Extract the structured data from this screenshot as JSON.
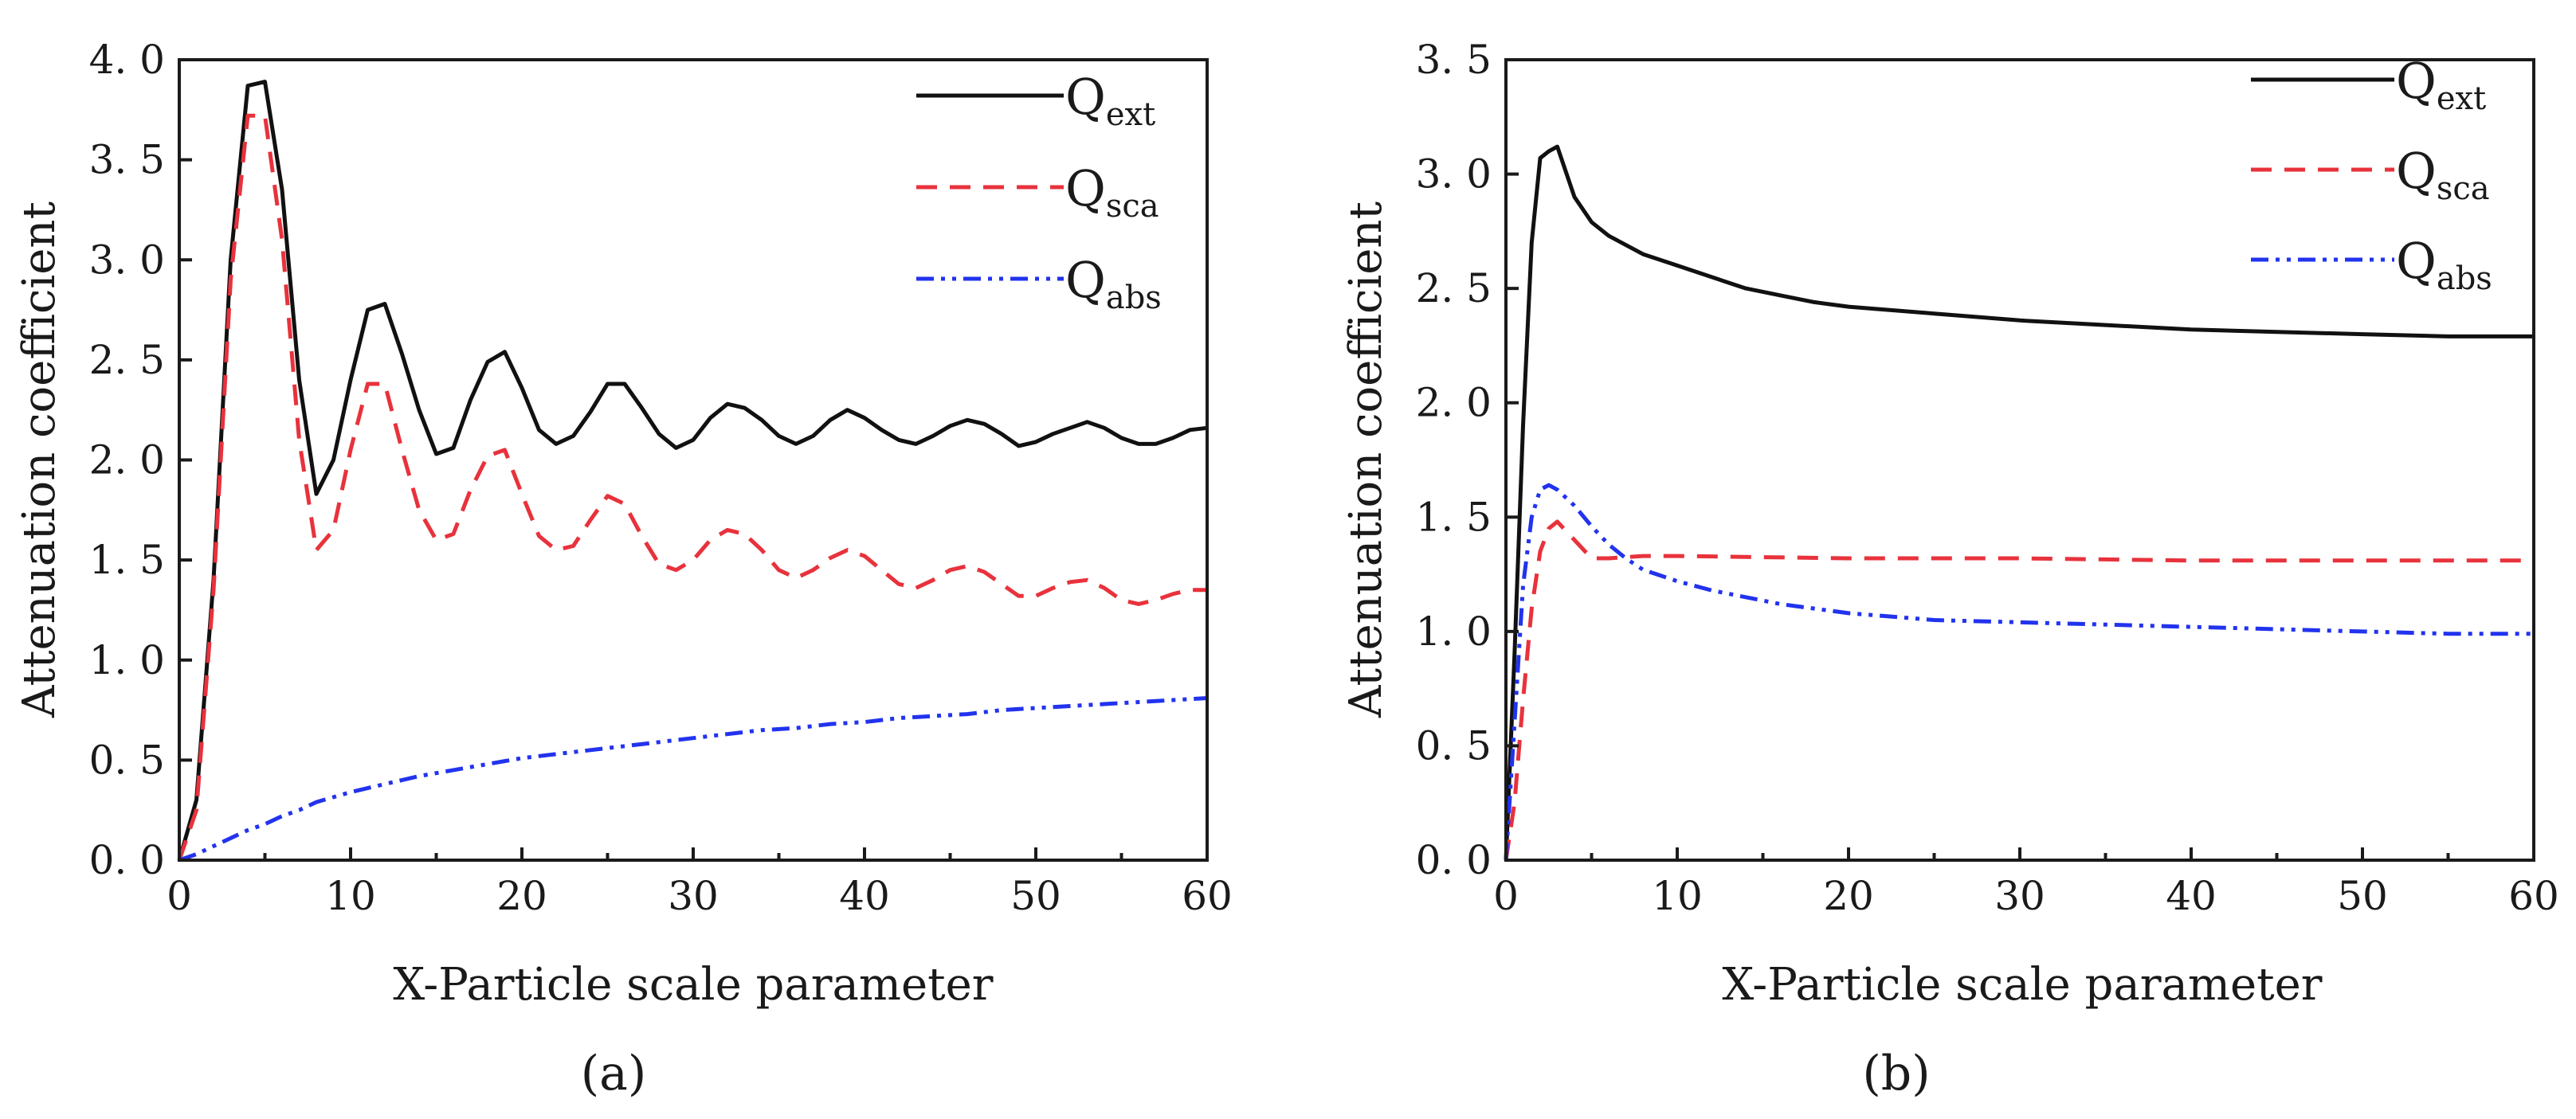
{
  "figure": {
    "captions": [
      "(a)",
      "(b)"
    ]
  },
  "chart_data": [
    {
      "type": "line",
      "panel": "(a)",
      "title": "",
      "xlabel": "X-Particle scale parameter",
      "ylabel": "Attenuation coefficient",
      "xlim": [
        0,
        60
      ],
      "ylim": [
        0,
        4.0
      ],
      "xticks": [
        0,
        10,
        20,
        30,
        40,
        50,
        60
      ],
      "xtick_labels": [
        "0",
        "10",
        "20",
        "30",
        "40",
        "50",
        "60"
      ],
      "yticks": [
        0,
        0.5,
        1.0,
        1.5,
        2.0,
        2.5,
        3.0,
        3.5,
        4.0
      ],
      "ytick_labels": [
        "0. 0",
        "0. 5",
        "1. 0",
        "1. 5",
        "2. 0",
        "2. 5",
        "3. 0",
        "3. 5",
        "4. 0"
      ],
      "legend_position": "top-right",
      "series": [
        {
          "name": "Q_ext",
          "label_main": "Q",
          "label_sub": "ext",
          "color": "#111111",
          "style": "solid",
          "x": [
            0,
            1,
            2,
            3,
            4,
            5,
            6,
            7,
            8,
            9,
            10,
            11,
            12,
            13,
            14,
            15,
            16,
            17,
            18,
            19,
            20,
            21,
            22,
            23,
            24,
            25,
            26,
            27,
            28,
            29,
            30,
            31,
            32,
            33,
            34,
            35,
            36,
            37,
            38,
            39,
            40,
            41,
            42,
            43,
            44,
            45,
            46,
            47,
            48,
            49,
            50,
            51,
            52,
            53,
            54,
            55,
            56,
            57,
            58,
            59,
            60
          ],
          "y": [
            0.0,
            0.3,
            1.4,
            3.0,
            3.87,
            3.89,
            3.35,
            2.4,
            1.83,
            2.0,
            2.4,
            2.75,
            2.78,
            2.53,
            2.25,
            2.03,
            2.06,
            2.3,
            2.49,
            2.54,
            2.36,
            2.15,
            2.08,
            2.12,
            2.24,
            2.38,
            2.38,
            2.26,
            2.13,
            2.06,
            2.1,
            2.21,
            2.28,
            2.26,
            2.2,
            2.12,
            2.08,
            2.12,
            2.2,
            2.25,
            2.21,
            2.15,
            2.1,
            2.08,
            2.12,
            2.17,
            2.2,
            2.18,
            2.13,
            2.07,
            2.09,
            2.13,
            2.16,
            2.19,
            2.16,
            2.11,
            2.08,
            2.08,
            2.11,
            2.15,
            2.16
          ]
        },
        {
          "name": "Q_sca",
          "label_main": "Q",
          "label_sub": "sca",
          "color": "#e8323c",
          "style": "dashed",
          "x": [
            0,
            1,
            2,
            3,
            4,
            5,
            6,
            7,
            8,
            9,
            10,
            11,
            12,
            13,
            14,
            15,
            16,
            17,
            18,
            19,
            20,
            21,
            22,
            23,
            24,
            25,
            26,
            27,
            28,
            29,
            30,
            31,
            32,
            33,
            34,
            35,
            36,
            37,
            38,
            39,
            40,
            41,
            42,
            43,
            44,
            45,
            46,
            47,
            48,
            49,
            50,
            51,
            52,
            53,
            54,
            55,
            56,
            57,
            58,
            59,
            60
          ],
          "y": [
            0.0,
            0.25,
            1.35,
            2.9,
            3.72,
            3.72,
            3.1,
            2.1,
            1.55,
            1.65,
            2.05,
            2.38,
            2.38,
            2.05,
            1.75,
            1.6,
            1.63,
            1.85,
            2.02,
            2.05,
            1.83,
            1.62,
            1.55,
            1.57,
            1.7,
            1.82,
            1.78,
            1.62,
            1.48,
            1.45,
            1.5,
            1.6,
            1.65,
            1.63,
            1.55,
            1.45,
            1.41,
            1.45,
            1.51,
            1.55,
            1.52,
            1.45,
            1.38,
            1.36,
            1.4,
            1.45,
            1.47,
            1.44,
            1.38,
            1.32,
            1.32,
            1.36,
            1.39,
            1.4,
            1.36,
            1.3,
            1.28,
            1.3,
            1.33,
            1.35,
            1.35
          ]
        },
        {
          "name": "Q_abs",
          "label_main": "Q",
          "label_sub": "abs",
          "color": "#2233ee",
          "style": "dash-dot-dot",
          "x": [
            0,
            1,
            2,
            3,
            4,
            5,
            6,
            7,
            8,
            10,
            12,
            14,
            16,
            18,
            20,
            22,
            24,
            26,
            28,
            30,
            32,
            34,
            36,
            38,
            40,
            42,
            44,
            46,
            48,
            50,
            52,
            54,
            56,
            58,
            60
          ],
          "y": [
            0.0,
            0.03,
            0.07,
            0.11,
            0.15,
            0.18,
            0.22,
            0.25,
            0.29,
            0.34,
            0.38,
            0.42,
            0.45,
            0.48,
            0.51,
            0.53,
            0.55,
            0.57,
            0.59,
            0.61,
            0.63,
            0.65,
            0.66,
            0.68,
            0.69,
            0.71,
            0.72,
            0.73,
            0.75,
            0.76,
            0.77,
            0.78,
            0.79,
            0.8,
            0.81
          ]
        }
      ]
    },
    {
      "type": "line",
      "panel": "(b)",
      "title": "",
      "xlabel": "X-Particle scale parameter",
      "ylabel": "Attenuation coefficient",
      "xlim": [
        0,
        60
      ],
      "ylim": [
        0,
        3.5
      ],
      "xticks": [
        0,
        10,
        20,
        30,
        40,
        50,
        60
      ],
      "xtick_labels": [
        "0",
        "10",
        "20",
        "30",
        "40",
        "50",
        "60"
      ],
      "yticks": [
        0,
        0.5,
        1.0,
        1.5,
        2.0,
        2.5,
        3.0,
        3.5
      ],
      "ytick_labels": [
        "0. 0",
        "0. 5",
        "1. 0",
        "1. 5",
        "2. 0",
        "2. 5",
        "3. 0",
        "3. 5"
      ],
      "legend_position": "top-right",
      "series": [
        {
          "name": "Q_ext",
          "label_main": "Q",
          "label_sub": "ext",
          "color": "#111111",
          "style": "solid",
          "x": [
            0,
            0.5,
            1,
            1.5,
            2,
            2.5,
            3,
            4,
            5,
            6,
            7,
            8,
            10,
            12,
            14,
            16,
            18,
            20,
            25,
            30,
            35,
            40,
            45,
            50,
            55,
            60
          ],
          "y": [
            0.0,
            0.9,
            1.9,
            2.7,
            3.07,
            3.1,
            3.12,
            2.9,
            2.79,
            2.73,
            2.69,
            2.65,
            2.6,
            2.55,
            2.5,
            2.47,
            2.44,
            2.42,
            2.39,
            2.36,
            2.34,
            2.32,
            2.31,
            2.3,
            2.29,
            2.29
          ]
        },
        {
          "name": "Q_sca",
          "label_main": "Q",
          "label_sub": "sca",
          "color": "#e8323c",
          "style": "dashed",
          "x": [
            0,
            0.5,
            1,
            1.5,
            2,
            2.5,
            3,
            4,
            5,
            6,
            8,
            10,
            20,
            30,
            40,
            50,
            60
          ],
          "y": [
            0.0,
            0.25,
            0.7,
            1.1,
            1.35,
            1.45,
            1.48,
            1.4,
            1.32,
            1.32,
            1.33,
            1.33,
            1.32,
            1.32,
            1.31,
            1.31,
            1.31
          ]
        },
        {
          "name": "Q_abs",
          "label_main": "Q",
          "label_sub": "abs",
          "color": "#2233ee",
          "style": "dash-dot-dot",
          "x": [
            0,
            0.5,
            1,
            1.5,
            2,
            2.5,
            3,
            4,
            5,
            6,
            7,
            8,
            10,
            12,
            14,
            16,
            18,
            20,
            25,
            30,
            35,
            40,
            45,
            50,
            55,
            60
          ],
          "y": [
            0.0,
            0.6,
            1.2,
            1.5,
            1.62,
            1.64,
            1.62,
            1.55,
            1.46,
            1.38,
            1.32,
            1.27,
            1.22,
            1.18,
            1.15,
            1.12,
            1.1,
            1.08,
            1.05,
            1.04,
            1.03,
            1.02,
            1.01,
            1.0,
            0.99,
            0.99
          ]
        }
      ]
    }
  ]
}
